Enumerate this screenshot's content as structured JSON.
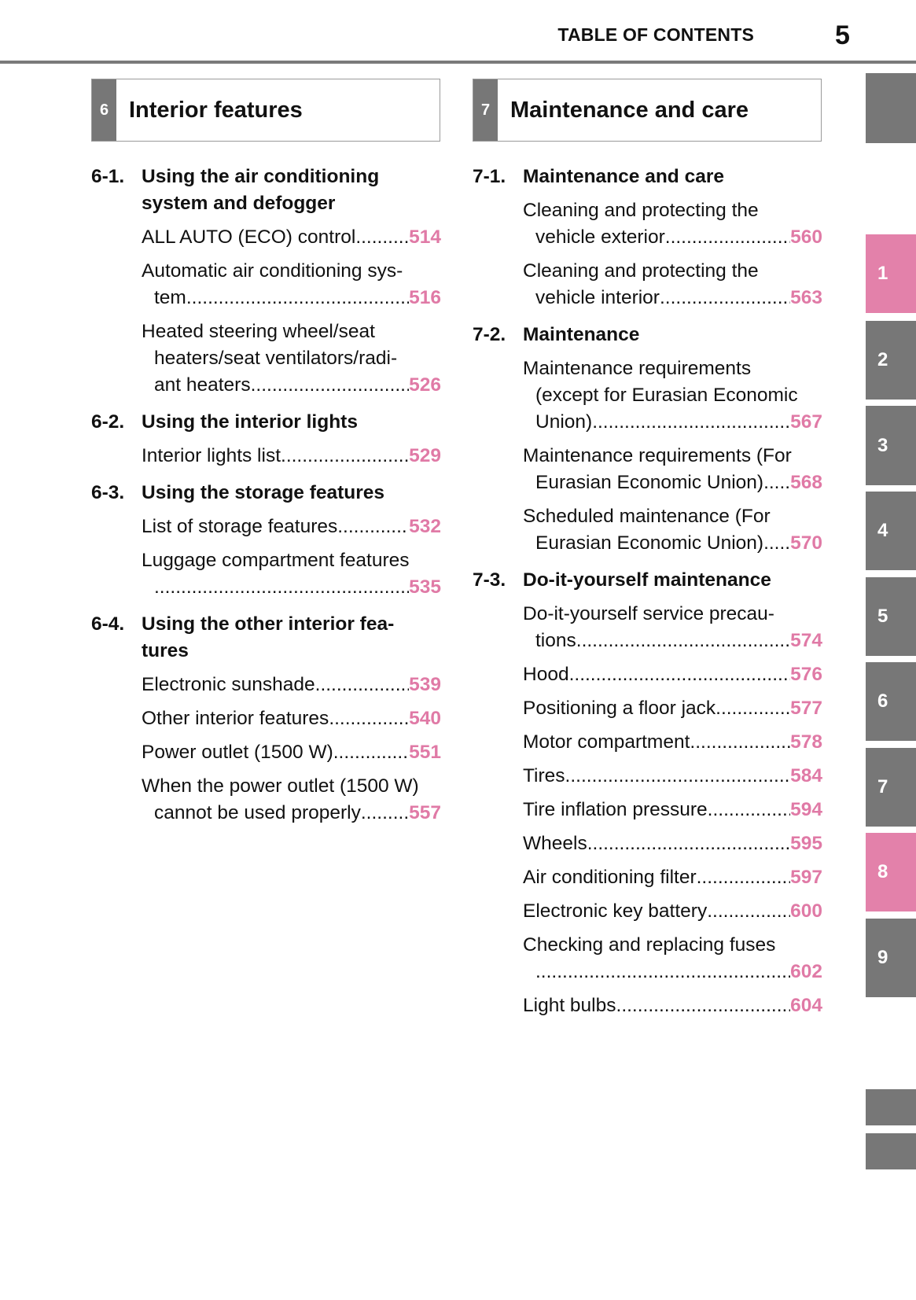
{
  "header": {
    "title": "TABLE OF CONTENTS",
    "page_number": "5"
  },
  "colors": {
    "accent_pink": "#e07aa6",
    "tab_gray": "#777777"
  },
  "columns": [
    {
      "chapter_number": "6",
      "chapter_title": "Interior features",
      "sections": [
        {
          "number": "6-1.",
          "title_lines": [
            "Using the air conditioning",
            "system and defogger"
          ],
          "entries": [
            {
              "lines": [
                "ALL AUTO (ECO) control"
              ],
              "page": "514"
            },
            {
              "lines": [
                "Automatic air conditioning sys-",
                "tem"
              ],
              "page": "516"
            },
            {
              "lines": [
                "Heated steering wheel/seat",
                "heaters/seat ventilators/radi-",
                "ant heaters"
              ],
              "page": "526"
            }
          ]
        },
        {
          "number": "6-2.",
          "title_lines": [
            "Using the interior lights"
          ],
          "entries": [
            {
              "lines": [
                "Interior lights list"
              ],
              "page": "529"
            }
          ]
        },
        {
          "number": "6-3.",
          "title_lines": [
            "Using the storage features"
          ],
          "entries": [
            {
              "lines": [
                "List of storage features "
              ],
              "page": "532"
            },
            {
              "lines": [
                "Luggage compartment features",
                ""
              ],
              "page": "535"
            }
          ]
        },
        {
          "number": "6-4.",
          "title_lines": [
            "Using the other interior fea-",
            "tures"
          ],
          "entries": [
            {
              "lines": [
                "Electronic sunshade "
              ],
              "page": "539"
            },
            {
              "lines": [
                "Other interior features"
              ],
              "page": "540"
            },
            {
              "lines": [
                "Power outlet (1500 W)"
              ],
              "page": "551"
            },
            {
              "lines": [
                "When the power outlet (1500 W)",
                "cannot be used properly "
              ],
              "page": "557"
            }
          ]
        }
      ]
    },
    {
      "chapter_number": "7",
      "chapter_title": "Maintenance and care",
      "sections": [
        {
          "number": "7-1.",
          "title_lines": [
            "Maintenance and care"
          ],
          "entries": [
            {
              "lines": [
                "Cleaning and protecting the",
                "vehicle exterior "
              ],
              "page": "560"
            },
            {
              "lines": [
                "Cleaning and protecting the",
                "vehicle interior "
              ],
              "page": "563"
            }
          ]
        },
        {
          "number": "7-2.",
          "title_lines": [
            "Maintenance"
          ],
          "entries": [
            {
              "lines": [
                "Maintenance requirements",
                "(except for Eurasian Economic",
                "Union)"
              ],
              "page": "567"
            },
            {
              "lines": [
                "Maintenance requirements (For",
                "Eurasian Economic Union)"
              ],
              "page": "568"
            },
            {
              "lines": [
                "Scheduled maintenance (For",
                "Eurasian Economic Union)"
              ],
              "page": "570"
            }
          ]
        },
        {
          "number": "7-3.",
          "title_lines": [
            "Do-it-yourself maintenance"
          ],
          "entries": [
            {
              "lines": [
                "Do-it-yourself service precau-",
                "tions "
              ],
              "page": "574"
            },
            {
              "lines": [
                "Hood "
              ],
              "page": "576"
            },
            {
              "lines": [
                "Positioning a floor jack"
              ],
              "page": "577"
            },
            {
              "lines": [
                "Motor compartment"
              ],
              "page": "578"
            },
            {
              "lines": [
                "Tires"
              ],
              "page": "584"
            },
            {
              "lines": [
                "Tire inflation pressure "
              ],
              "page": "594"
            },
            {
              "lines": [
                "Wheels"
              ],
              "page": "595"
            },
            {
              "lines": [
                "Air conditioning filter "
              ],
              "page": "597"
            },
            {
              "lines": [
                "Electronic key battery "
              ],
              "page": "600"
            },
            {
              "lines": [
                "Checking and replacing fuses",
                ""
              ],
              "page": "602"
            },
            {
              "lines": [
                "Light bulbs "
              ],
              "page": "604"
            }
          ]
        }
      ]
    }
  ],
  "side_tabs": [
    {
      "label": "",
      "active": false
    },
    {
      "label": "1",
      "active": true
    },
    {
      "label": "2",
      "active": false
    },
    {
      "label": "3",
      "active": false
    },
    {
      "label": "4",
      "active": false
    },
    {
      "label": "5",
      "active": false
    },
    {
      "label": "6",
      "active": false
    },
    {
      "label": "7",
      "active": false
    },
    {
      "label": "8",
      "active": true
    },
    {
      "label": "9",
      "active": false
    },
    {
      "label": "",
      "active": false
    },
    {
      "label": "",
      "active": false
    }
  ]
}
